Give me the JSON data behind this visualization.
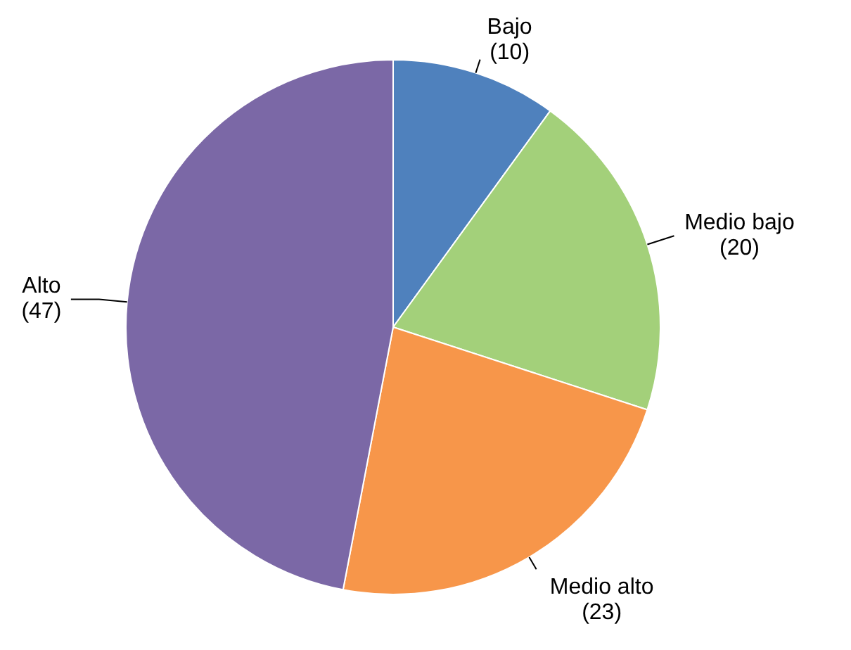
{
  "chart_data": {
    "type": "pie",
    "categories": [
      "Bajo",
      "Medio bajo",
      "Medio alto",
      "Alto"
    ],
    "values": [
      10,
      20,
      23,
      47
    ],
    "colors": [
      "#4f81bd",
      "#a3d07a",
      "#f7964a",
      "#7b68a6"
    ],
    "value_labels": [
      "(10)",
      "(20)",
      "(23)",
      "(47)"
    ]
  }
}
